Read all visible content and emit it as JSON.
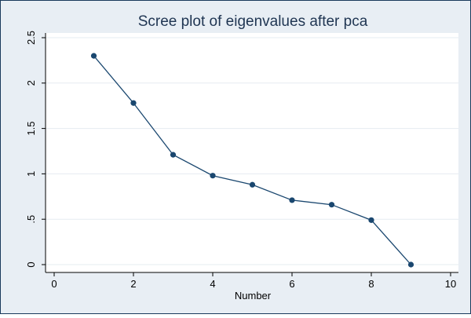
{
  "colors": {
    "outer_background": "#e8eef4",
    "outer_border": "#1a3a5c",
    "plot_background": "#ffffff",
    "grid": "#e6ecf1",
    "series": "#1a476f",
    "title": "#1f3552"
  },
  "chart_data": {
    "type": "line",
    "title": "Scree plot of eigenvalues after pca",
    "xlabel": "Number",
    "ylabel": "",
    "xlim": [
      0,
      10
    ],
    "ylim": [
      0,
      2.5
    ],
    "xticks": [
      0,
      2,
      4,
      6,
      8,
      10
    ],
    "yticks": [
      0,
      0.5,
      1,
      1.5,
      2,
      2.5
    ],
    "xtick_labels": [
      "0",
      "2",
      "4",
      "6",
      "8",
      "10"
    ],
    "ytick_labels": [
      "0",
      ".5",
      "1",
      "1.5",
      "2",
      "2.5"
    ],
    "grid": true,
    "markers": true,
    "series": [
      {
        "x": [
          1,
          2,
          3,
          4,
          5,
          6,
          7,
          8,
          9
        ],
        "values": [
          2.3,
          1.78,
          1.21,
          0.98,
          0.88,
          0.71,
          0.66,
          0.49,
          0.0
        ]
      }
    ]
  }
}
